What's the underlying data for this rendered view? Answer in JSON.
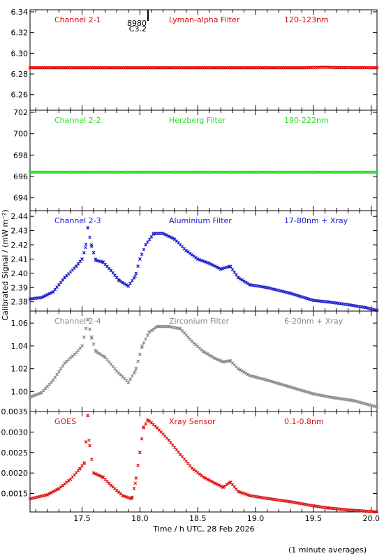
{
  "colors": {
    "ch1": "#e00000",
    "ch2": "#22dd22",
    "ch3": "#1a1acc",
    "ch4": "#888888",
    "goes": "#dd1111",
    "frame": "#000000"
  },
  "footer": {
    "note": "(1 minute averages)"
  },
  "chart_data": [
    {
      "type": "scatter",
      "panel": "Channel 2-1",
      "labels": [
        "Channel 2-1",
        "Lyman-alpha Filter",
        "120-123nm"
      ],
      "color": "ch1",
      "annotation": {
        "text1": "8980",
        "text2": "C3.2",
        "x": 18.07
      },
      "ylim": [
        6.245,
        6.342
      ],
      "yticks": [
        6.26,
        6.28,
        6.3,
        6.32,
        6.34
      ],
      "ytick_labels": [
        "6.26",
        "6.28",
        "6.30",
        "6.32",
        "6.34"
      ],
      "xlim": [
        17.05,
        20.05
      ],
      "points": [
        [
          17.05,
          6.286
        ],
        [
          17.3,
          6.286
        ],
        [
          17.6,
          6.286
        ],
        [
          17.9,
          6.286
        ],
        [
          18.2,
          6.286
        ],
        [
          18.5,
          6.286
        ],
        [
          18.8,
          6.286
        ],
        [
          19.1,
          6.286
        ],
        [
          19.4,
          6.286
        ],
        [
          19.6,
          6.2865
        ],
        [
          19.7,
          6.2862
        ],
        [
          20.05,
          6.286
        ]
      ]
    },
    {
      "type": "scatter",
      "panel": "Channel 2-2",
      "labels": [
        "Channel 2-2",
        "Herzberg Filter",
        "190-222nm"
      ],
      "color": "ch2",
      "ylim": [
        692.8,
        702.2
      ],
      "yticks": [
        694,
        696,
        698,
        700,
        702
      ],
      "ytick_labels": [
        "694",
        "696",
        "698",
        "700",
        "702"
      ],
      "xlim": [
        17.05,
        20.05
      ],
      "points": [
        [
          17.05,
          696.4
        ],
        [
          17.5,
          696.4
        ],
        [
          18.0,
          696.4
        ],
        [
          18.5,
          696.4
        ],
        [
          19.0,
          696.4
        ],
        [
          19.5,
          696.4
        ],
        [
          20.05,
          696.4
        ]
      ]
    },
    {
      "type": "scatter",
      "panel": "Channel 2-3",
      "labels": [
        "Channel 2-3",
        "Aluminium Filter",
        "17-80nm + Xray"
      ],
      "color": "ch3",
      "ylim": [
        2.3735,
        2.444
      ],
      "yticks": [
        2.38,
        2.39,
        2.4,
        2.41,
        2.42,
        2.43,
        2.44
      ],
      "ytick_labels": [
        "2.38",
        "2.39",
        "2.40",
        "2.41",
        "2.42",
        "2.43",
        "2.44"
      ],
      "xlim": [
        17.05,
        20.05
      ],
      "points": [
        [
          17.05,
          2.382
        ],
        [
          17.15,
          2.383
        ],
        [
          17.25,
          2.387
        ],
        [
          17.35,
          2.397
        ],
        [
          17.45,
          2.405
        ],
        [
          17.5,
          2.41
        ],
        [
          17.53,
          2.418
        ],
        [
          17.55,
          2.432
        ],
        [
          17.58,
          2.42
        ],
        [
          17.62,
          2.409
        ],
        [
          17.68,
          2.408
        ],
        [
          17.75,
          2.402
        ],
        [
          17.82,
          2.395
        ],
        [
          17.9,
          2.391
        ],
        [
          17.96,
          2.398
        ],
        [
          18.0,
          2.41
        ],
        [
          18.05,
          2.42
        ],
        [
          18.12,
          2.428
        ],
        [
          18.2,
          2.428
        ],
        [
          18.3,
          2.424
        ],
        [
          18.4,
          2.416
        ],
        [
          18.5,
          2.41
        ],
        [
          18.6,
          2.407
        ],
        [
          18.7,
          2.403
        ],
        [
          18.78,
          2.405
        ],
        [
          18.85,
          2.397
        ],
        [
          18.95,
          2.392
        ],
        [
          19.1,
          2.39
        ],
        [
          19.3,
          2.386
        ],
        [
          19.5,
          2.381
        ],
        [
          19.62,
          2.38
        ],
        [
          19.8,
          2.378
        ],
        [
          19.95,
          2.376
        ],
        [
          20.05,
          2.374
        ]
      ]
    },
    {
      "type": "scatter",
      "panel": "Channel 2-4",
      "labels": [
        "Channel 2-4",
        "Zirconium Filter",
        "6-20nm + Xray"
      ],
      "color": "ch4",
      "ylim": [
        0.9825,
        1.0705
      ],
      "yticks": [
        1.0,
        1.02,
        1.04,
        1.06
      ],
      "ytick_labels": [
        "1.00",
        "1.02",
        "1.04",
        "1.06"
      ],
      "xlim": [
        17.05,
        20.05
      ],
      "points": [
        [
          17.05,
          0.995
        ],
        [
          17.15,
          0.999
        ],
        [
          17.25,
          1.01
        ],
        [
          17.35,
          1.025
        ],
        [
          17.45,
          1.034
        ],
        [
          17.5,
          1.04
        ],
        [
          17.55,
          1.063
        ],
        [
          17.58,
          1.048
        ],
        [
          17.62,
          1.035
        ],
        [
          17.7,
          1.03
        ],
        [
          17.8,
          1.018
        ],
        [
          17.9,
          1.008
        ],
        [
          17.96,
          1.018
        ],
        [
          18.02,
          1.04
        ],
        [
          18.08,
          1.052
        ],
        [
          18.15,
          1.057
        ],
        [
          18.25,
          1.057
        ],
        [
          18.35,
          1.055
        ],
        [
          18.45,
          1.044
        ],
        [
          18.55,
          1.035
        ],
        [
          18.65,
          1.029
        ],
        [
          18.72,
          1.026
        ],
        [
          18.78,
          1.027
        ],
        [
          18.85,
          1.02
        ],
        [
          18.95,
          1.014
        ],
        [
          19.1,
          1.01
        ],
        [
          19.3,
          1.004
        ],
        [
          19.5,
          0.998
        ],
        [
          19.65,
          0.995
        ],
        [
          19.85,
          0.992
        ],
        [
          20.05,
          0.9865
        ]
      ]
    },
    {
      "type": "scatter",
      "panel": "GOES",
      "labels": [
        "GOES",
        "Xray Sensor",
        "0.1-0.8nm"
      ],
      "color": "goes",
      "ylim": [
        0.00105,
        0.0035
      ],
      "yticks": [
        0.0015,
        0.002,
        0.0025,
        0.003,
        0.0035
      ],
      "ytick_labels": [
        "0.0015",
        "0.0020",
        "0.0025",
        "0.0030",
        "0.0035"
      ],
      "xlim": [
        17.05,
        20.05
      ],
      "xlabel": "Time / h UTC, 28 Feb 2026",
      "xticks": [
        17.5,
        18.0,
        18.5,
        19.0,
        19.5,
        20.0
      ],
      "xtick_labels": [
        "17.5",
        "18.0",
        "18.5",
        "19.0",
        "19.5",
        "20.0"
      ],
      "points": [
        [
          17.05,
          0.00137
        ],
        [
          17.2,
          0.00147
        ],
        [
          17.3,
          0.00162
        ],
        [
          17.4,
          0.00185
        ],
        [
          17.48,
          0.0021
        ],
        [
          17.52,
          0.00225
        ],
        [
          17.55,
          0.0034
        ],
        [
          17.56,
          0.0028
        ],
        [
          17.6,
          0.002
        ],
        [
          17.68,
          0.0019
        ],
        [
          17.75,
          0.0017
        ],
        [
          17.85,
          0.00145
        ],
        [
          17.93,
          0.00137
        ],
        [
          17.96,
          0.00175
        ],
        [
          18.0,
          0.0025
        ],
        [
          18.03,
          0.0031
        ],
        [
          18.07,
          0.0033
        ],
        [
          18.15,
          0.0031
        ],
        [
          18.25,
          0.0028
        ],
        [
          18.35,
          0.00245
        ],
        [
          18.45,
          0.00212
        ],
        [
          18.55,
          0.0019
        ],
        [
          18.65,
          0.00175
        ],
        [
          18.72,
          0.00165
        ],
        [
          18.78,
          0.00178
        ],
        [
          18.85,
          0.00155
        ],
        [
          18.95,
          0.00145
        ],
        [
          19.1,
          0.00138
        ],
        [
          19.3,
          0.0013
        ],
        [
          19.5,
          0.0012
        ],
        [
          19.62,
          0.00115
        ],
        [
          19.8,
          0.0011
        ],
        [
          20.05,
          0.00105
        ]
      ]
    }
  ],
  "shared": {
    "ylabel": "Calibrated Signal / (mW m⁻²)"
  }
}
